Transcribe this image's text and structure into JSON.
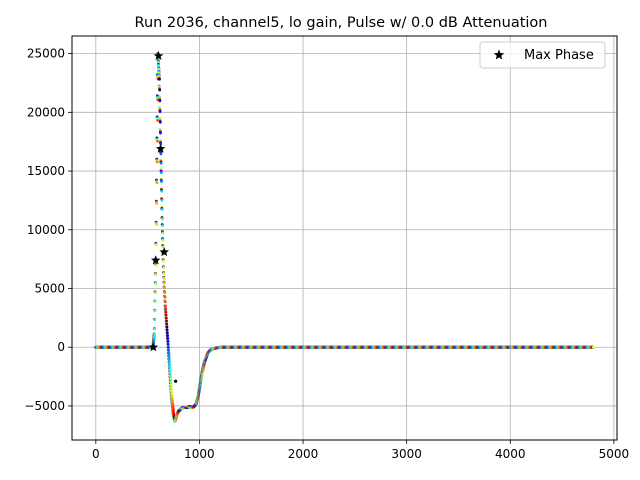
{
  "chart_data": {
    "type": "scatter",
    "title": "Run 2036, channel5, lo gain, Pulse w/ 0.0 dB Attenuation",
    "xlabel": "",
    "ylabel": "",
    "xlim": [
      -230,
      5030
    ],
    "ylim": [
      -7900,
      26500
    ],
    "x_ticks": [
      0,
      1000,
      2000,
      3000,
      4000,
      5000
    ],
    "x_tick_labels": [
      "0",
      "1000",
      "2000",
      "3000",
      "4000",
      "5000"
    ],
    "y_ticks": [
      -5000,
      0,
      5000,
      10000,
      15000,
      20000,
      25000
    ],
    "y_tick_labels": [
      "−5000",
      "0",
      "5000",
      "10000",
      "15000",
      "20000",
      "25000"
    ],
    "grid": true,
    "legend": {
      "position": "top-right",
      "entries": [
        {
          "label": "Max Phase",
          "marker": "star"
        }
      ]
    },
    "colormap": "jet",
    "waveform_keypoints": [
      [
        0,
        0
      ],
      [
        550,
        0
      ],
      [
        565,
        1200
      ],
      [
        580,
        7000
      ],
      [
        600,
        24800
      ],
      [
        612,
        23000
      ],
      [
        625,
        17000
      ],
      [
        640,
        11000
      ],
      [
        655,
        6500
      ],
      [
        670,
        3500
      ],
      [
        690,
        1000
      ],
      [
        710,
        -1500
      ],
      [
        730,
        -4000
      ],
      [
        750,
        -5800
      ],
      [
        765,
        -6300
      ],
      [
        780,
        -5800
      ],
      [
        800,
        -5400
      ],
      [
        830,
        -5200
      ],
      [
        870,
        -5100
      ],
      [
        940,
        -5100
      ],
      [
        970,
        -4800
      ],
      [
        990,
        -4000
      ],
      [
        1010,
        -3000
      ],
      [
        1030,
        -2000
      ],
      [
        1050,
        -1200
      ],
      [
        1080,
        -500
      ],
      [
        1120,
        -150
      ],
      [
        1200,
        0
      ],
      [
        4800,
        0
      ]
    ],
    "max_phase_points": [
      {
        "x": 555,
        "y": 0
      },
      {
        "x": 578,
        "y": 7400
      },
      {
        "x": 605,
        "y": 24800
      },
      {
        "x": 625,
        "y": 16900
      },
      {
        "x": 660,
        "y": 8100
      }
    ],
    "outlier_points": [
      {
        "x": 770,
        "y": -2900
      }
    ]
  }
}
